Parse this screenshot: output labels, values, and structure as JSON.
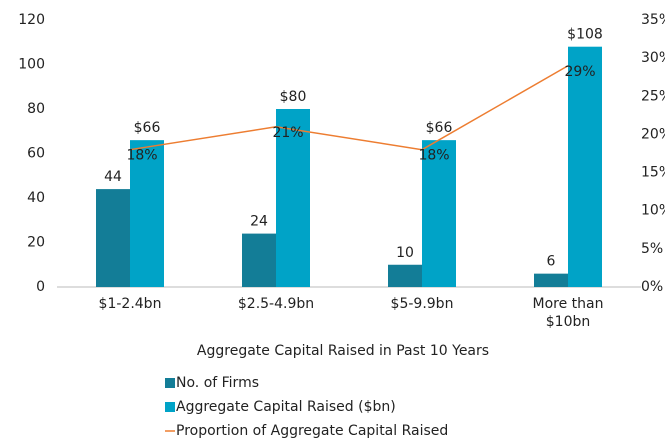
{
  "chart_data": {
    "type": "bar_line",
    "x_label": "Aggregate Capital Raised in Past 10 Years",
    "categories": [
      "$1-2.4bn",
      "$2.5-4.9bn",
      "$5-9.9bn",
      "More than $10bn"
    ],
    "series": [
      {
        "name": "No. of Firms",
        "color": "#137d97",
        "type": "bar",
        "values": [
          44,
          24,
          10,
          6
        ]
      },
      {
        "name": "Aggregate Capital Raised ($bn)",
        "color": "#00a3c7",
        "type": "bar",
        "values": [
          66,
          80,
          66,
          108
        ],
        "value_labels": [
          "$66",
          "$80",
          "$66",
          "$108"
        ]
      },
      {
        "name": "Proportion of Aggregate Capital Raised",
        "color": "#ed7d31",
        "type": "line",
        "axis": "y2",
        "values": [
          18,
          21,
          18,
          29
        ],
        "value_labels": [
          "18%",
          "21%",
          "18%",
          "29%"
        ]
      }
    ],
    "ylim": [
      0,
      120
    ],
    "yticks": [
      0,
      20,
      40,
      60,
      80,
      100,
      120
    ],
    "y2lim": [
      0,
      35
    ],
    "y2ticks": [
      {
        "value": 0,
        "label": "0%"
      },
      {
        "value": 5,
        "label": "5%"
      },
      {
        "value": 10,
        "label": "10%"
      },
      {
        "value": 15,
        "label": "15%"
      },
      {
        "value": 20,
        "label": "20%"
      },
      {
        "value": 25,
        "label": "25%"
      },
      {
        "value": 30,
        "label": "30%"
      },
      {
        "value": 35,
        "label": "35%"
      }
    ],
    "grid": false,
    "legend": "bottom"
  }
}
